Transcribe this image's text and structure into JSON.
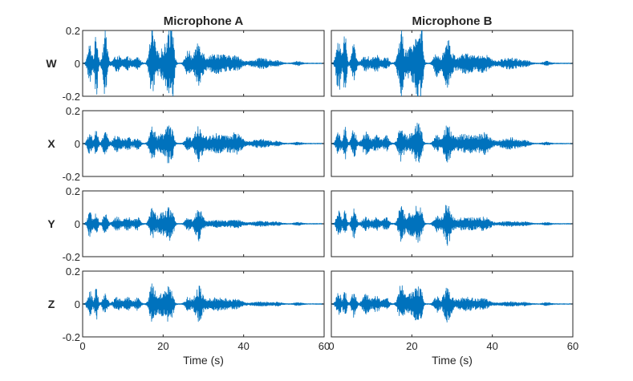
{
  "chart_data": {
    "type": "line",
    "columns": [
      "Microphone A",
      "Microphone B"
    ],
    "rows": [
      "W",
      "X",
      "Y",
      "Z"
    ],
    "xlabel": "Time (s)",
    "xlim": [
      0,
      60
    ],
    "xticks": [
      0,
      20,
      40,
      60
    ],
    "xtick_labels": [
      "0",
      "20",
      "40",
      "60"
    ],
    "ylim": [
      -0.2,
      0.2
    ],
    "yticks": [
      -0.2,
      0,
      0.2
    ],
    "ytick_labels": [
      "-0.2",
      "0",
      "0.2"
    ],
    "grid": false,
    "line_color": "#0072BD",
    "bursts": [
      {
        "t": 1.8,
        "w": 0.5,
        "a": [
          0.12,
          0.18,
          0.07,
          0.07,
          0.08,
          0.08,
          0.08,
          0.08
        ]
      },
      {
        "t": 3.4,
        "w": 0.35,
        "a": [
          0.2,
          0.2,
          0.09,
          0.1,
          0.07,
          0.08,
          0.1,
          0.08
        ]
      },
      {
        "t": 5.6,
        "w": 0.5,
        "a": [
          0.2,
          0.13,
          0.09,
          0.09,
          0.07,
          0.09,
          0.07,
          0.08
        ]
      },
      {
        "t": 8.6,
        "w": 0.8,
        "a": [
          0.05,
          0.05,
          0.06,
          0.07,
          0.04,
          0.04,
          0.04,
          0.06
        ]
      },
      {
        "t": 11.2,
        "w": 0.8,
        "a": [
          0.04,
          0.05,
          0.04,
          0.05,
          0.04,
          0.04,
          0.04,
          0.05
        ]
      },
      {
        "t": 13.6,
        "w": 0.6,
        "a": [
          0.04,
          0.04,
          0.04,
          0.05,
          0.04,
          0.04,
          0.04,
          0.04
        ]
      },
      {
        "t": 17.3,
        "w": 0.6,
        "a": [
          0.2,
          0.2,
          0.1,
          0.11,
          0.09,
          0.1,
          0.12,
          0.12
        ]
      },
      {
        "t": 19.8,
        "w": 1.2,
        "a": [
          0.09,
          0.1,
          0.06,
          0.06,
          0.07,
          0.07,
          0.07,
          0.07
        ]
      },
      {
        "t": 21.5,
        "w": 0.6,
        "a": [
          0.2,
          0.2,
          0.1,
          0.11,
          0.08,
          0.09,
          0.08,
          0.1
        ]
      },
      {
        "t": 22.4,
        "w": 0.35,
        "a": [
          0.2,
          0.2,
          0.04,
          0.04,
          0.05,
          0.05,
          0.04,
          0.05
        ]
      },
      {
        "t": 26.2,
        "w": 0.6,
        "a": [
          0.08,
          0.08,
          0.04,
          0.05,
          0.04,
          0.05,
          0.04,
          0.05
        ]
      },
      {
        "t": 28.8,
        "w": 0.8,
        "a": [
          0.13,
          0.14,
          0.1,
          0.1,
          0.1,
          0.12,
          0.1,
          0.1
        ]
      },
      {
        "t": 33.5,
        "w": 2.8,
        "a": [
          0.06,
          0.06,
          0.06,
          0.06,
          0.02,
          0.04,
          0.04,
          0.04
        ]
      },
      {
        "t": 38.2,
        "w": 1.2,
        "a": [
          0.03,
          0.04,
          0.05,
          0.05,
          0.02,
          0.03,
          0.02,
          0.02
        ]
      },
      {
        "t": 44.5,
        "w": 2.2,
        "a": [
          0.03,
          0.035,
          0.025,
          0.035,
          0.015,
          0.015,
          0.012,
          0.012
        ]
      },
      {
        "t": 48.5,
        "w": 0.8,
        "a": [
          0.01,
          0.012,
          0.008,
          0.01,
          0.008,
          0.008,
          0.008,
          0.008
        ]
      },
      {
        "t": 53.5,
        "w": 0.8,
        "a": [
          0.012,
          0.012,
          0.008,
          0.008,
          0.008,
          0.008,
          0.008,
          0.008
        ]
      }
    ]
  }
}
